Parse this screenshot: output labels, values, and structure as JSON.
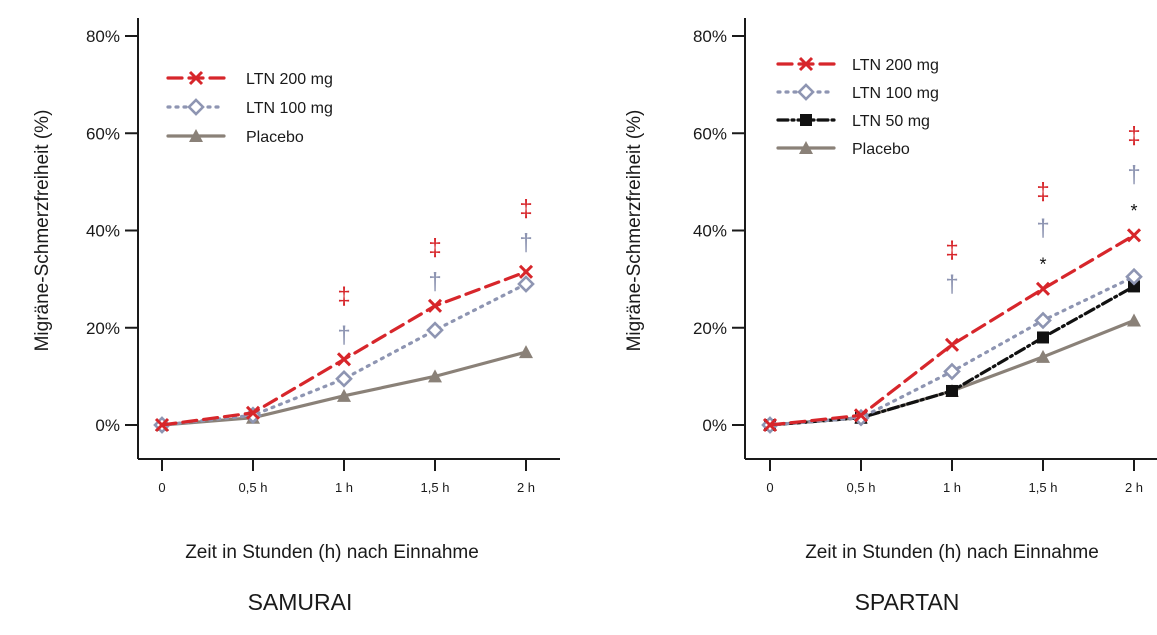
{
  "chart_data": [
    {
      "type": "line",
      "title": "SAMURAI",
      "xlabel": "Zeit in Stunden (h) nach Einnahme",
      "ylabel": "Migräne-Schmerzfreiheit (%)",
      "categories": [
        "0",
        "0,5 h",
        "1 h",
        "1,5 h",
        "2 h"
      ],
      "x": [
        0,
        0.5,
        1,
        1.5,
        2
      ],
      "ylim": [
        0,
        80
      ],
      "yticks": [
        0,
        20,
        40,
        60,
        80
      ],
      "ytick_labels": [
        "0%",
        "20%",
        "40%",
        "60%",
        "80%"
      ],
      "legend_position": "top-left",
      "grid": false,
      "series": [
        {
          "name": "LTN 200 mg",
          "values": [
            0,
            2.5,
            13.5,
            24.5,
            31.5
          ],
          "color": "#d7262b",
          "dash": "dashed",
          "marker": "x-icon"
        },
        {
          "name": "LTN 100 mg",
          "values": [
            0,
            2,
            9.5,
            19.5,
            29
          ],
          "color": "#8e95b2",
          "dash": "dotted",
          "marker": "diamond-open-icon"
        },
        {
          "name": "Placebo",
          "values": [
            0,
            1.5,
            6,
            10,
            15
          ],
          "color": "#8a8178",
          "dash": "solid",
          "marker": "triangle-icon"
        }
      ],
      "annotations": [
        {
          "x": 1,
          "y": 26.5,
          "text": "‡",
          "color": "#d7262b"
        },
        {
          "x": 1,
          "y": 18.5,
          "text": "†",
          "color": "#8e95b2"
        },
        {
          "x": 1.5,
          "y": 36.5,
          "text": "‡",
          "color": "#d7262b"
        },
        {
          "x": 1.5,
          "y": 29.5,
          "text": "†",
          "color": "#8e95b2"
        },
        {
          "x": 2,
          "y": 44.5,
          "text": "‡",
          "color": "#d7262b"
        },
        {
          "x": 2,
          "y": 37.5,
          "text": "†",
          "color": "#8e95b2"
        }
      ]
    },
    {
      "type": "line",
      "title": "SPARTAN",
      "xlabel": "Zeit in Stunden (h) nach Einnahme",
      "ylabel": "Migräne-Schmerzfreiheit (%)",
      "categories": [
        "0",
        "0,5 h",
        "1 h",
        "1,5 h",
        "2 h"
      ],
      "x": [
        0,
        0.5,
        1,
        1.5,
        2
      ],
      "ylim": [
        0,
        80
      ],
      "yticks": [
        0,
        20,
        40,
        60,
        80
      ],
      "ytick_labels": [
        "0%",
        "20%",
        "40%",
        "60%",
        "80%"
      ],
      "legend_position": "top-left",
      "grid": false,
      "series": [
        {
          "name": "LTN 200 mg",
          "values": [
            0,
            2,
            16.5,
            28,
            39
          ],
          "color": "#d7262b",
          "dash": "dashed",
          "marker": "x-icon"
        },
        {
          "name": "LTN 100 mg",
          "values": [
            0,
            1.5,
            11,
            21.5,
            30.5
          ],
          "color": "#8e95b2",
          "dash": "dotted",
          "marker": "diamond-open-icon"
        },
        {
          "name": "LTN 50 mg",
          "values": [
            0,
            1.5,
            7,
            18,
            28.5
          ],
          "color": "#111111",
          "dash": "dashdot",
          "marker": "square-icon"
        },
        {
          "name": "Placebo",
          "values": [
            0,
            1.5,
            7,
            14,
            21.5
          ],
          "color": "#8a8178",
          "dash": "solid",
          "marker": "triangle-icon"
        }
      ],
      "annotations": [
        {
          "x": 1,
          "y": 36,
          "text": "‡",
          "color": "#d7262b"
        },
        {
          "x": 1,
          "y": 29,
          "text": "†",
          "color": "#8e95b2"
        },
        {
          "x": 1.5,
          "y": 48,
          "text": "‡",
          "color": "#d7262b"
        },
        {
          "x": 1.5,
          "y": 40.5,
          "text": "†",
          "color": "#8e95b2"
        },
        {
          "x": 1.5,
          "y": 33,
          "text": "*",
          "color": "#111111"
        },
        {
          "x": 2,
          "y": 59.5,
          "text": "‡",
          "color": "#d7262b"
        },
        {
          "x": 2,
          "y": 51.5,
          "text": "†",
          "color": "#8e95b2"
        },
        {
          "x": 2,
          "y": 44,
          "text": "*",
          "color": "#111111"
        }
      ]
    }
  ]
}
